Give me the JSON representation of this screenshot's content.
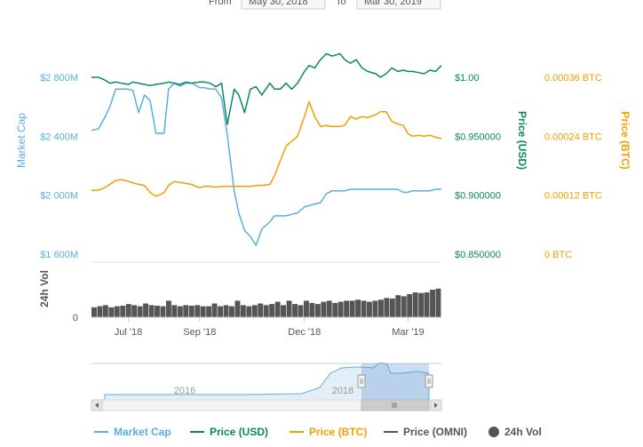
{
  "range_selector": {
    "from_label": "From",
    "from_value": "May 30, 2018",
    "to_label": "To",
    "to_value": "Mar 30, 2019"
  },
  "colors": {
    "market_cap": "#5aaee0",
    "price_usd": "#0b8a5d",
    "price_btc": "#f0a000",
    "price_omni": "#555555",
    "volume": "#555555",
    "navigator_fill": "#c5dcef"
  },
  "chart_data": {
    "type": "line",
    "x_ticks": [
      "Jul '18",
      "Sep '18",
      "Dec '18",
      "Mar '19"
    ],
    "market_cap_axis": {
      "label": "Market Cap",
      "ticks": [
        "$1 600M",
        "$2 000M",
        "$2 400M",
        "$2 800M"
      ],
      "range": [
        1600,
        2800
      ],
      "units": "million USD"
    },
    "usd_axis": {
      "label": "Price (USD)",
      "ticks": [
        "$0.850000",
        "$0.900000",
        "$0.950000",
        "$1.00"
      ],
      "range": [
        0.85,
        1.0
      ]
    },
    "btc_axis": {
      "label": "Price (BTC)",
      "ticks": [
        "0 BTC",
        "0.00012 BTC",
        "0.00024 BTC",
        "0.00036 BTC"
      ],
      "range": [
        0,
        0.00036
      ]
    },
    "volume_axis": {
      "label": "24h Vol",
      "ticks": [
        "0"
      ]
    },
    "series": [
      {
        "name": "Market Cap",
        "axis": "market_cap",
        "x": [
          "2018-05-30",
          "2018-06-05",
          "2018-06-10",
          "2018-06-15",
          "2018-06-20",
          "2018-06-25",
          "2018-07-01",
          "2018-07-05",
          "2018-07-10",
          "2018-07-15",
          "2018-07-20",
          "2018-07-25",
          "2018-08-01",
          "2018-08-05",
          "2018-08-10",
          "2018-08-15",
          "2018-08-20",
          "2018-08-25",
          "2018-09-01",
          "2018-09-05",
          "2018-09-10",
          "2018-09-15",
          "2018-09-20",
          "2018-09-25",
          "2018-10-01",
          "2018-10-05",
          "2018-10-10",
          "2018-10-15",
          "2018-10-20",
          "2018-10-25",
          "2018-11-01",
          "2018-11-05",
          "2018-11-10",
          "2018-11-15",
          "2018-11-20",
          "2018-11-25",
          "2018-12-01",
          "2018-12-05",
          "2018-12-10",
          "2018-12-15",
          "2018-12-20",
          "2018-12-25",
          "2019-01-01",
          "2019-01-05",
          "2019-01-10",
          "2019-01-15",
          "2019-01-20",
          "2019-01-25",
          "2019-02-01",
          "2019-02-05",
          "2019-02-10",
          "2019-02-15",
          "2019-02-20",
          "2019-02-25",
          "2019-03-01",
          "2019-03-05",
          "2019-03-10",
          "2019-03-15",
          "2019-03-20",
          "2019-03-25",
          "2019-03-30"
        ],
        "values": [
          2440,
          2450,
          2520,
          2600,
          2720,
          2720,
          2720,
          2710,
          2560,
          2680,
          2640,
          2420,
          2420,
          2720,
          2760,
          2740,
          2760,
          2760,
          2730,
          2730,
          2720,
          2720,
          2660,
          2410,
          2030,
          1880,
          1760,
          1720,
          1660,
          1770,
          1820,
          1860,
          1860,
          1860,
          1870,
          1880,
          1920,
          1930,
          1940,
          1950,
          2010,
          2030,
          2030,
          2030,
          2040,
          2040,
          2040,
          2040,
          2040,
          2040,
          2040,
          2040,
          2040,
          2020,
          2020,
          2030,
          2030,
          2030,
          2030,
          2040,
          2040
        ]
      },
      {
        "name": "Price (USD)",
        "axis": "usd",
        "x": [
          "2018-05-30",
          "2018-06-05",
          "2018-06-10",
          "2018-06-15",
          "2018-06-20",
          "2018-06-25",
          "2018-07-01",
          "2018-07-05",
          "2018-07-10",
          "2018-07-15",
          "2018-07-20",
          "2018-07-25",
          "2018-08-01",
          "2018-08-05",
          "2018-08-10",
          "2018-08-15",
          "2018-08-20",
          "2018-08-25",
          "2018-09-01",
          "2018-09-05",
          "2018-09-10",
          "2018-09-15",
          "2018-09-20",
          "2018-09-25",
          "2018-10-01",
          "2018-10-05",
          "2018-10-10",
          "2018-10-15",
          "2018-10-20",
          "2018-10-25",
          "2018-11-01",
          "2018-11-05",
          "2018-11-10",
          "2018-11-15",
          "2018-11-20",
          "2018-11-25",
          "2018-12-01",
          "2018-12-05",
          "2018-12-10",
          "2018-12-15",
          "2018-12-20",
          "2018-12-25",
          "2019-01-01",
          "2019-01-05",
          "2019-01-10",
          "2019-01-15",
          "2019-01-20",
          "2019-01-25",
          "2019-02-01",
          "2019-02-05",
          "2019-02-10",
          "2019-02-15",
          "2019-02-20",
          "2019-02-25",
          "2019-03-01",
          "2019-03-05",
          "2019-03-10",
          "2019-03-15",
          "2019-03-20",
          "2019-03-25",
          "2019-03-30"
        ],
        "values": [
          1.0,
          1.0,
          0.998,
          0.995,
          0.996,
          0.995,
          0.994,
          0.996,
          0.995,
          0.994,
          0.993,
          0.994,
          0.995,
          0.996,
          0.995,
          0.994,
          0.996,
          0.995,
          0.996,
          0.996,
          0.995,
          0.992,
          0.995,
          0.96,
          0.99,
          0.985,
          0.97,
          0.99,
          0.992,
          0.985,
          0.995,
          0.99,
          0.99,
          0.995,
          0.99,
          0.995,
          1.005,
          1.01,
          1.008,
          1.015,
          1.02,
          1.018,
          1.02,
          1.015,
          1.012,
          1.015,
          1.008,
          1.005,
          1.003,
          1.0,
          1.003,
          1.008,
          1.005,
          1.006,
          1.005,
          1.005,
          1.004,
          1.003,
          1.006,
          1.005,
          1.01
        ]
      },
      {
        "name": "Price (BTC)",
        "axis": "btc",
        "x": [
          "2018-05-30",
          "2018-06-05",
          "2018-06-10",
          "2018-06-15",
          "2018-06-20",
          "2018-06-25",
          "2018-07-01",
          "2018-07-05",
          "2018-07-10",
          "2018-07-15",
          "2018-07-20",
          "2018-07-25",
          "2018-08-01",
          "2018-08-05",
          "2018-08-10",
          "2018-08-15",
          "2018-08-20",
          "2018-08-25",
          "2018-09-01",
          "2018-09-05",
          "2018-09-10",
          "2018-09-15",
          "2018-09-20",
          "2018-09-25",
          "2018-10-01",
          "2018-10-05",
          "2018-10-10",
          "2018-10-15",
          "2018-10-20",
          "2018-10-25",
          "2018-11-01",
          "2018-11-05",
          "2018-11-10",
          "2018-11-15",
          "2018-11-20",
          "2018-11-25",
          "2018-12-01",
          "2018-12-05",
          "2018-12-10",
          "2018-12-15",
          "2018-12-20",
          "2018-12-25",
          "2019-01-01",
          "2019-01-05",
          "2019-01-10",
          "2019-01-15",
          "2019-01-20",
          "2019-01-25",
          "2019-02-01",
          "2019-02-05",
          "2019-02-10",
          "2019-02-15",
          "2019-02-20",
          "2019-02-25",
          "2019-03-01",
          "2019-03-05",
          "2019-03-10",
          "2019-03-15",
          "2019-03-20",
          "2019-03-25",
          "2019-03-30"
        ],
        "values": [
          0.00013,
          0.00013,
          0.000135,
          0.000142,
          0.00015,
          0.000152,
          0.000148,
          0.000145,
          0.000142,
          0.00014,
          0.000125,
          0.000118,
          0.000125,
          0.00014,
          0.000148,
          0.000146,
          0.000144,
          0.000142,
          0.000135,
          0.000138,
          0.000138,
          0.000136,
          0.000138,
          0.000138,
          0.000138,
          0.000138,
          0.000138,
          0.000138,
          0.00014,
          0.00014,
          0.000142,
          0.00016,
          0.00019,
          0.00022,
          0.00023,
          0.00024,
          0.00028,
          0.00031,
          0.00028,
          0.00026,
          0.000262,
          0.00026,
          0.00026,
          0.000262,
          0.00028,
          0.000275,
          0.00028,
          0.000278,
          0.000284,
          0.00029,
          0.00029,
          0.00027,
          0.000265,
          0.000262,
          0.000245,
          0.00024,
          0.000242,
          0.00024,
          0.000242,
          0.000238,
          0.000235
        ]
      }
    ],
    "volume": {
      "x_start": "2018-05-30",
      "x_end": "2019-03-30",
      "values": [
        0.18,
        0.2,
        0.22,
        0.18,
        0.2,
        0.21,
        0.24,
        0.22,
        0.2,
        0.25,
        0.22,
        0.21,
        0.2,
        0.3,
        0.22,
        0.2,
        0.22,
        0.21,
        0.22,
        0.2,
        0.2,
        0.25,
        0.2,
        0.22,
        0.2,
        0.3,
        0.22,
        0.2,
        0.22,
        0.25,
        0.22,
        0.24,
        0.28,
        0.22,
        0.3,
        0.24,
        0.22,
        0.3,
        0.26,
        0.24,
        0.28,
        0.3,
        0.26,
        0.28,
        0.3,
        0.3,
        0.32,
        0.3,
        0.28,
        0.3,
        0.32,
        0.35,
        0.34,
        0.4,
        0.38,
        0.42,
        0.45,
        0.44,
        0.45,
        0.5,
        0.52
      ]
    },
    "navigator": {
      "labels": [
        "2016",
        "2018"
      ]
    },
    "legend": [
      "Market Cap",
      "Price (USD)",
      "Price (BTC)",
      "Price (OMNI)",
      "24h Vol"
    ],
    "legend_position": "bottom",
    "grid": false
  }
}
